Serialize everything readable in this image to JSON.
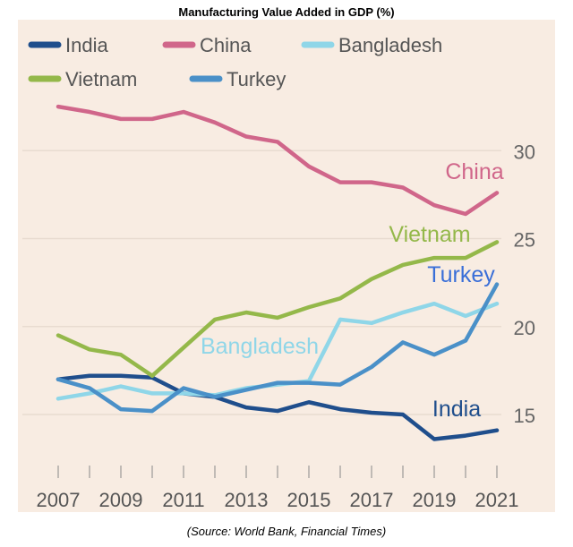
{
  "chart_data": {
    "type": "line",
    "title": "Manufacturing Value Added in GDP (%)",
    "source": "(Source: World Bank, Financial Times)",
    "xlabel": "",
    "ylabel": "",
    "x": [
      2007,
      2008,
      2009,
      2010,
      2011,
      2012,
      2013,
      2014,
      2015,
      2016,
      2017,
      2018,
      2019,
      2020,
      2021
    ],
    "x_tick_labels": [
      "2007",
      "2009",
      "2011",
      "2013",
      "2015",
      "2017",
      "2019",
      "2021"
    ],
    "y_ticks": [
      15,
      20,
      25,
      30
    ],
    "ylim": [
      12,
      35
    ],
    "grid": true,
    "legend_placement": "top-left",
    "series": [
      {
        "name": "India",
        "color": "#1f4e8c",
        "label_color": "#1f4e8c",
        "values": [
          17.0,
          17.2,
          17.2,
          17.1,
          16.2,
          16.0,
          15.4,
          15.2,
          15.7,
          15.3,
          15.1,
          15.0,
          13.6,
          13.8,
          14.1
        ]
      },
      {
        "name": "China",
        "color": "#d0668a",
        "label_color": "#d0668a",
        "values": [
          32.5,
          32.2,
          31.8,
          31.8,
          32.2,
          31.6,
          30.8,
          30.5,
          29.1,
          28.2,
          28.2,
          27.9,
          26.9,
          26.4,
          27.6
        ]
      },
      {
        "name": "Bangladesh",
        "color": "#8fd6e8",
        "label_color": "#8fd6e8",
        "values": [
          15.9,
          16.2,
          16.6,
          16.2,
          16.2,
          16.1,
          16.5,
          16.7,
          16.9,
          20.4,
          20.2,
          20.8,
          21.3,
          20.6,
          21.3
        ]
      },
      {
        "name": "Vietnam",
        "color": "#94b84a",
        "label_color": "#94b84a",
        "values": [
          19.5,
          18.7,
          18.4,
          17.2,
          18.8,
          20.4,
          20.8,
          20.5,
          21.1,
          21.6,
          22.7,
          23.5,
          23.9,
          23.9,
          24.8
        ]
      },
      {
        "name": "Turkey",
        "color": "#4a90c8",
        "label_color": "#3a6fd8",
        "values": [
          17.0,
          16.5,
          15.3,
          15.2,
          16.5,
          16.0,
          16.4,
          16.8,
          16.8,
          16.7,
          17.7,
          19.1,
          18.4,
          19.2,
          22.4
        ]
      }
    ],
    "background": "#f8ece2"
  }
}
